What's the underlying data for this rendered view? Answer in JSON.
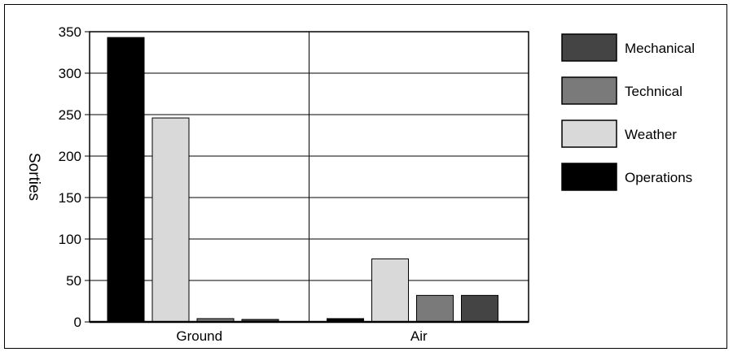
{
  "chart_data": {
    "type": "bar",
    "title": "",
    "xlabel": "",
    "ylabel": "Sorties",
    "ylim": [
      0,
      350
    ],
    "yticks": [
      0,
      50,
      100,
      150,
      200,
      250,
      300,
      350
    ],
    "grid": true,
    "legend_position": "right",
    "categories": [
      "Ground",
      "Air"
    ],
    "series": [
      {
        "name": "Operations",
        "color": "#000000",
        "values": [
          343,
          4
        ]
      },
      {
        "name": "Weather",
        "color": "#d9d9d9",
        "values": [
          246,
          76
        ]
      },
      {
        "name": "Technical",
        "color": "#7a7a7a",
        "values": [
          4,
          32
        ]
      },
      {
        "name": "Mechanical",
        "color": "#444444",
        "values": [
          3,
          32
        ]
      }
    ],
    "legend_order": [
      "Mechanical",
      "Technical",
      "Weather",
      "Operations"
    ]
  }
}
